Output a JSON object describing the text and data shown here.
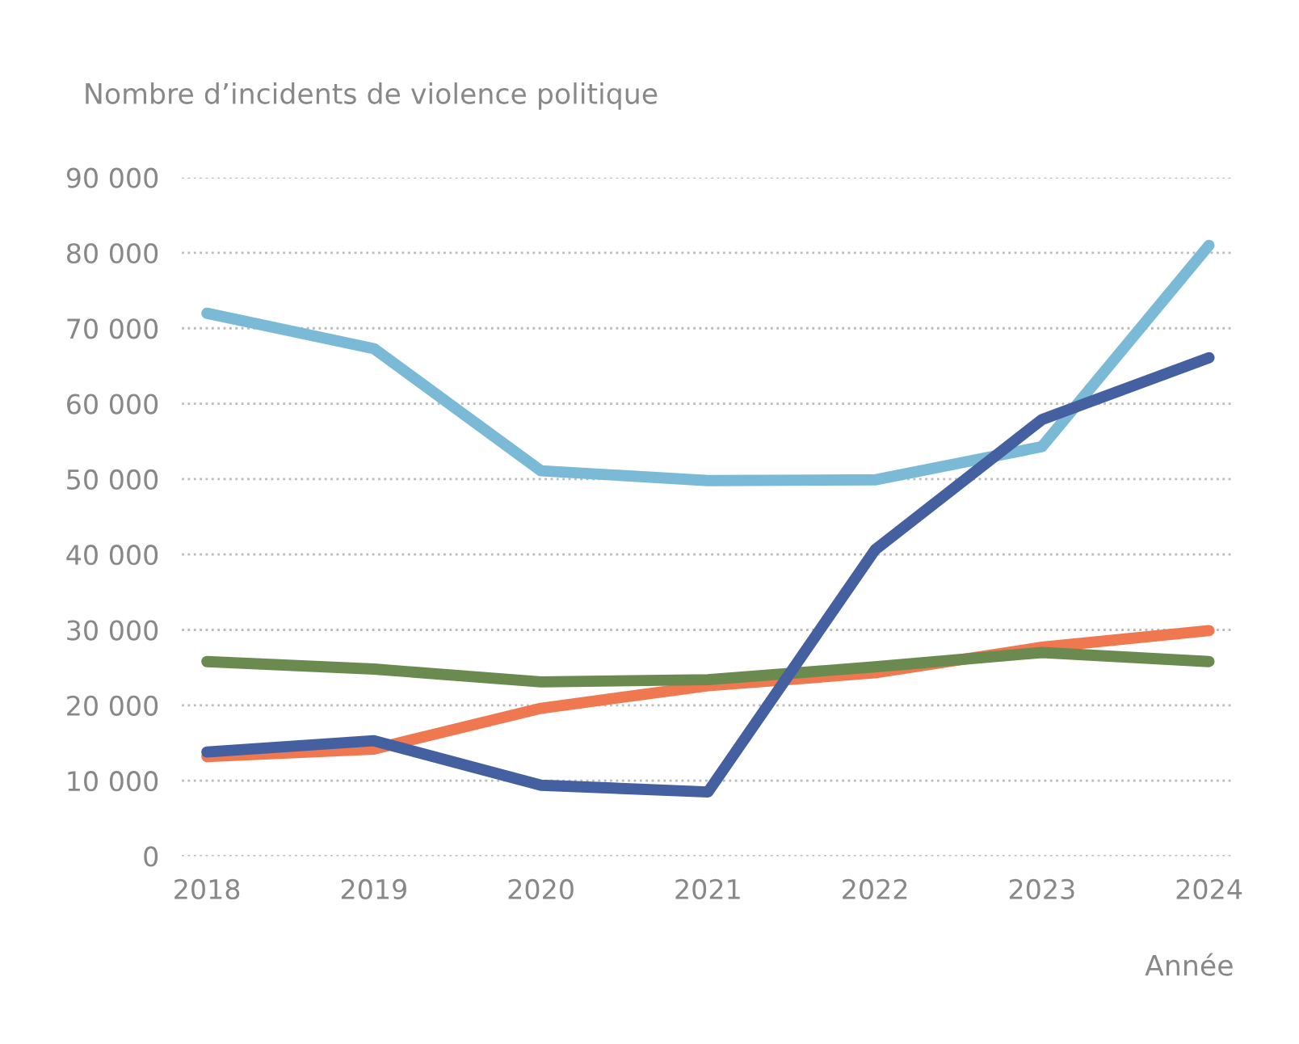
{
  "chart_data": {
    "type": "line",
    "ylabel": "Nombre d’incidents de violence politique",
    "xlabel": "Année",
    "categories": [
      "2018",
      "2019",
      "2020",
      "2021",
      "2022",
      "2023",
      "2024"
    ],
    "series": [
      {
        "color": "#7bbad6",
        "values": [
          72000,
          67300,
          51100,
          49800,
          49900,
          54300,
          81000
        ]
      },
      {
        "color": "#f07850",
        "values": [
          13200,
          14200,
          19600,
          22600,
          24300,
          27700,
          29900
        ]
      },
      {
        "color": "#6a8a50",
        "values": [
          25800,
          24800,
          23100,
          23400,
          25100,
          27000,
          25800
        ]
      },
      {
        "color": "#4560a0",
        "values": [
          13800,
          15300,
          9400,
          8500,
          40600,
          57900,
          66100
        ]
      }
    ],
    "ylim": [
      0,
      90000
    ],
    "yticks": [
      {
        "value": 0,
        "label": "0"
      },
      {
        "value": 10000,
        "label": "10 000"
      },
      {
        "value": 20000,
        "label": "20 000"
      },
      {
        "value": 30000,
        "label": "30 000"
      },
      {
        "value": 40000,
        "label": "40 000"
      },
      {
        "value": 50000,
        "label": "50 000"
      },
      {
        "value": 60000,
        "label": "60 000"
      },
      {
        "value": 70000,
        "label": "70 000"
      },
      {
        "value": 80000,
        "label": "80 000"
      },
      {
        "value": 90000,
        "label": "90 000"
      }
    ],
    "grid": "y",
    "legend": false,
    "line_style": "solid"
  }
}
